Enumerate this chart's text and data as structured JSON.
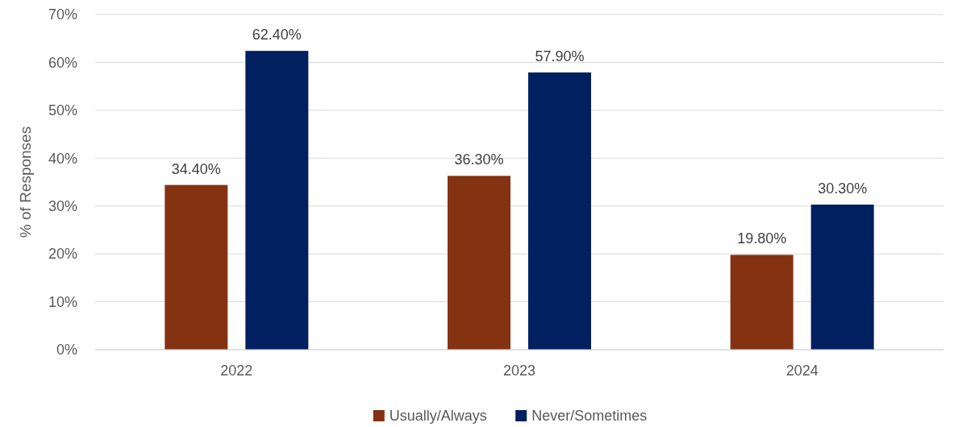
{
  "chart_data": {
    "type": "bar",
    "ylabel": "% of Responses",
    "categories": [
      "2022",
      "2023",
      "2024"
    ],
    "series": [
      {
        "name": "Usually/Always",
        "color": "#843312",
        "values": [
          34.4,
          36.3,
          19.8
        ],
        "value_labels": [
          "34.40%",
          "36.30%",
          "19.80%"
        ]
      },
      {
        "name": "Never/Sometimes",
        "color": "#002060",
        "values": [
          62.4,
          57.9,
          30.3
        ],
        "value_labels": [
          "62.40%",
          "57.90%",
          "30.30%"
        ]
      }
    ],
    "ylim": [
      0,
      70
    ],
    "yticks": [
      {
        "value": 0,
        "label": "0%"
      },
      {
        "value": 10,
        "label": "10%"
      },
      {
        "value": 20,
        "label": "20%"
      },
      {
        "value": 30,
        "label": "30%"
      },
      {
        "value": 40,
        "label": "40%"
      },
      {
        "value": 50,
        "label": "50%"
      },
      {
        "value": 60,
        "label": "60%"
      },
      {
        "value": 70,
        "label": "70%"
      }
    ],
    "grid": "y",
    "legend": "bottom"
  }
}
